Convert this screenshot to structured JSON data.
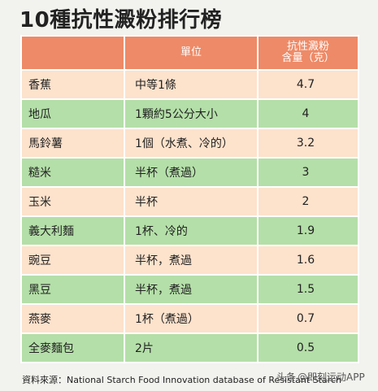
{
  "title": "10種抗性澱粉排行榜",
  "header": {
    "col1": "",
    "col2": "單位",
    "col3_line1": "抗性澱粉",
    "col3_line2": "含量（克）"
  },
  "rows": [
    {
      "name": "香蕉",
      "unit": "中等1條",
      "value": "4.7"
    },
    {
      "name": "地瓜",
      "unit": "1顆約5公分大小",
      "value": "4"
    },
    {
      "name": "馬鈴薯",
      "unit": "1個（水煮、冷的）",
      "value": "3.2"
    },
    {
      "name": "糙米",
      "unit": "半杯（煮過）",
      "value": "3"
    },
    {
      "name": "玉米",
      "unit": "半杯",
      "value": "2"
    },
    {
      "name": "義大利麵",
      "unit": "1杯、冷的",
      "value": "1.9"
    },
    {
      "name": "豌豆",
      "unit": "半杯，煮過",
      "value": "1.6"
    },
    {
      "name": "黑豆",
      "unit": "半杯，煮過",
      "value": "1.5"
    },
    {
      "name": "燕麥",
      "unit": "1杯（煮過）",
      "value": "0.7"
    },
    {
      "name": "全麥麵包",
      "unit": "2片",
      "value": "0.5"
    }
  ],
  "source": "資料來源：National Starch Food Innovation database of Resistant Starch",
  "watermark": {
    "part1": "头条",
    "part2": "@即刻运动APP"
  },
  "colors": {
    "header": "#ee8a67",
    "row_peach": "#fde2cc",
    "row_green": "#b4dfa8",
    "background": "#f2f2ee"
  }
}
